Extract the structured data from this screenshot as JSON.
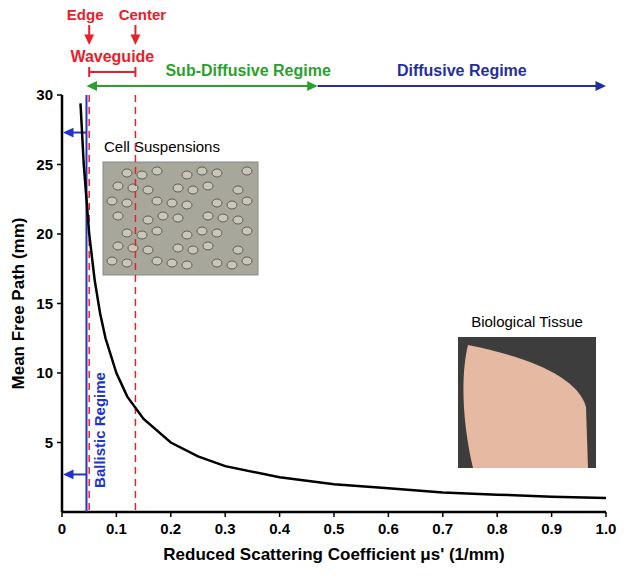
{
  "chart_data": {
    "type": "line",
    "x_label": "Reduced Scattering Coefficient μs' (1/mm)",
    "y_label": "Mean Free Path (mm)",
    "xlim": [
      0,
      1
    ],
    "ylim": [
      0,
      30
    ],
    "xticks": [
      0,
      0.1,
      0.2,
      0.3,
      0.4,
      0.5,
      0.6,
      0.7,
      0.8,
      0.9,
      {
        "value": 1,
        "label": "1.0"
      }
    ],
    "yticks": [
      5,
      10,
      15,
      20,
      25,
      30
    ],
    "grid": false,
    "series": [
      {
        "color": "#000000",
        "x": [
          0.034,
          0.04,
          0.05,
          0.06,
          0.07,
          0.08,
          0.1,
          0.12,
          0.15,
          0.2,
          0.25,
          0.3,
          0.4,
          0.5,
          0.6,
          0.7,
          0.8,
          0.9,
          1.0
        ],
        "values": [
          29.4,
          25,
          20,
          16.7,
          14.3,
          12.5,
          10,
          8.3,
          6.7,
          5,
          4,
          3.3,
          2.5,
          2,
          1.7,
          1.4,
          1.25,
          1.1,
          1.0
        ]
      }
    ],
    "annotations": [
      {
        "type": "vline",
        "text": "Ballistic Regime",
        "x": 0.045,
        "color": "#2233cc",
        "arrows_y": [
          27.3,
          2.7
        ]
      },
      {
        "type": "vline",
        "text": "Edge",
        "x": 0.05,
        "color": "#e8202a"
      },
      {
        "type": "vline",
        "text": "Center",
        "x": 0.135,
        "color": "#e8202a"
      },
      {
        "type": "bracket",
        "text": "Waveguide",
        "x_range": [
          0.05,
          0.135
        ],
        "color": "#e8202a"
      },
      {
        "type": "range",
        "text": "Sub-Diffusive Regime",
        "x_range": [
          0.045,
          0.47
        ],
        "color": "#2ca02c"
      },
      {
        "type": "range",
        "text": "Diffusive Regime",
        "x_range": [
          0.47,
          1.0
        ],
        "color": "#1f2f9f"
      },
      {
        "type": "image",
        "text": "Cell Suspensions"
      },
      {
        "type": "image",
        "text": "Biological Tissue"
      }
    ]
  }
}
